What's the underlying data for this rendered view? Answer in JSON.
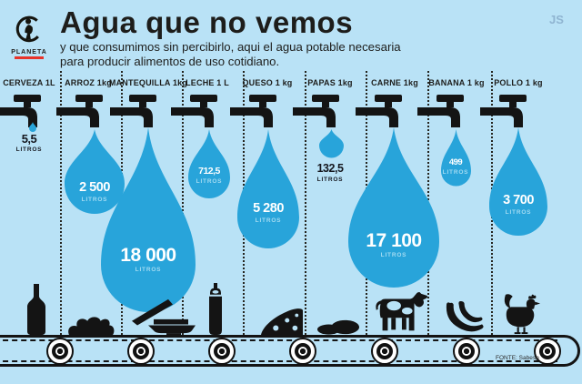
{
  "header": {
    "logo_brand": "PLANETA",
    "title": "Agua que no vemos",
    "subtitle_line1": "y que consumimos sin percibirlo, aqui el agua potable necesaria",
    "subtitle_line2": "para producir alimentos de uso cotidiano.",
    "watermark": "JS"
  },
  "footer": {
    "source": "FONTE: Sabesp"
  },
  "colors": {
    "background": "#b9e2f6",
    "drop_blue": "#28a4da",
    "ink": "#1d1d1b",
    "litros_inside": "#a3dbf2",
    "watermark": "#8fb4d1",
    "logo_red": "#e8332a"
  },
  "columns": [
    {
      "label": "CERVEZA 1L",
      "value": "5,5",
      "unit": "LITROS",
      "liters": 5.5,
      "icon": "beer-bottle",
      "value_style": "dark-outside"
    },
    {
      "label": "ARROZ 1kg",
      "value": "2 500",
      "unit": "LITROS",
      "liters": 2500,
      "icon": "rice-pile",
      "value_style": "inside"
    },
    {
      "label": "MANTEQUILLA 1kg",
      "value": "18 000",
      "unit": "LITROS",
      "liters": 18000,
      "icon": "butter-dish",
      "value_style": "inside"
    },
    {
      "label": "LECHE 1 L",
      "value": "712,5",
      "unit": "LITROS",
      "liters": 712.5,
      "icon": "milk-can",
      "value_style": "inside"
    },
    {
      "label": "QUESO 1 kg",
      "value": "5 280",
      "unit": "LITROS",
      "liters": 5280,
      "icon": "cheese-wedge",
      "value_style": "inside"
    },
    {
      "label": "PAPAS 1kg",
      "value": "132,5",
      "unit": "LITROS",
      "liters": 132.5,
      "icon": "potatoes",
      "value_style": "dark-outside"
    },
    {
      "label": "CARNE 1kg",
      "value": "17 100",
      "unit": "LITROS",
      "liters": 17100,
      "icon": "cow",
      "value_style": "inside"
    },
    {
      "label": "BANANA 1 kg",
      "value": "499",
      "unit": "LITROS",
      "liters": 499,
      "icon": "bananas",
      "value_style": "inside"
    },
    {
      "label": "POLLO 1 kg",
      "value": "3 700",
      "unit": "LITROS",
      "liters": 3700,
      "icon": "rooster",
      "value_style": "inside"
    }
  ],
  "chart_data": {
    "type": "pictogram",
    "title": "Agua que no vemos",
    "subtitle": "y que consumimos sin percibirlo, aqui el agua potable necesaria para producir alimentos de uso cotidiano.",
    "categories": [
      "CERVEZA 1L",
      "ARROZ 1kg",
      "MANTEQUILLA 1kg",
      "LECHE 1 L",
      "QUESO 1 kg",
      "PAPAS 1kg",
      "CARNE 1kg",
      "BANANA 1 kg",
      "POLLO 1 kg"
    ],
    "values": [
      5.5,
      2500,
      18000,
      712.5,
      5280,
      132.5,
      17100,
      499,
      3700
    ],
    "unit": "litros",
    "encoding": "water-drop size proportional to liters of potable water needed per unit of food",
    "legend_position": "none",
    "source": "FONTE: Sabesp"
  }
}
